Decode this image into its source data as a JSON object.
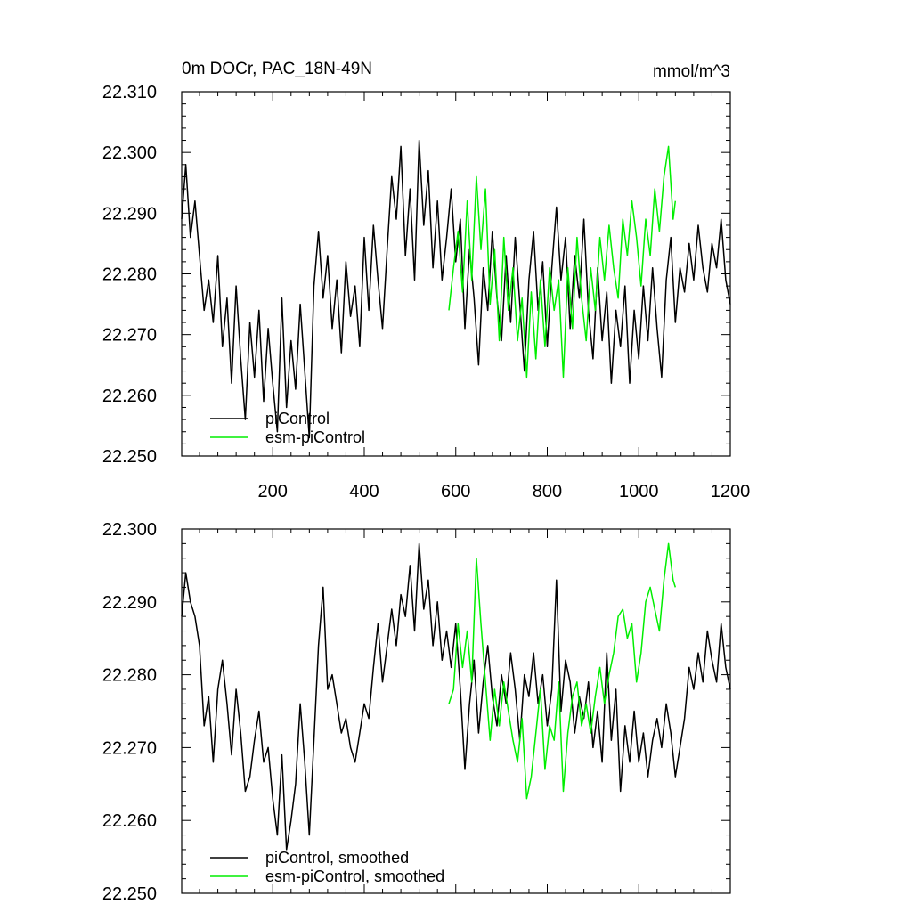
{
  "colors": {
    "piControl": "#000000",
    "esm_piControl": "#00ee00"
  },
  "chart_data": [
    {
      "type": "line",
      "title": "0m DOCr, PAC_18N-49N",
      "units": "mmol/m^3",
      "xlim": [
        1,
        1200
      ],
      "ylim": [
        22.25,
        22.31
      ],
      "x_ticks": [
        200,
        400,
        600,
        800,
        1000,
        1200
      ],
      "x_tick_labels": [
        "200",
        "400",
        "600",
        "800",
        "1000",
        "1200"
      ],
      "y_ticks": [
        22.25,
        22.26,
        22.27,
        22.28,
        22.29,
        22.3,
        22.31
      ],
      "y_tick_labels": [
        "22.250",
        "22.260",
        "22.270",
        "22.280",
        "22.290",
        "22.300",
        "22.310"
      ],
      "legend": [
        "piControl",
        "esm-piControl"
      ],
      "series": [
        {
          "name": "piControl",
          "color": "#000000",
          "x": [
            1,
            10,
            20,
            30,
            40,
            50,
            60,
            70,
            80,
            90,
            100,
            110,
            120,
            130,
            140,
            150,
            160,
            170,
            180,
            190,
            200,
            210,
            220,
            230,
            240,
            250,
            260,
            270,
            280,
            290,
            300,
            310,
            320,
            330,
            340,
            350,
            360,
            370,
            380,
            390,
            400,
            410,
            420,
            430,
            440,
            450,
            460,
            470,
            480,
            490,
            500,
            510,
            520,
            530,
            540,
            550,
            560,
            570,
            580,
            590,
            600,
            610,
            620,
            630,
            640,
            650,
            660,
            670,
            680,
            690,
            700,
            710,
            720,
            730,
            740,
            750,
            760,
            770,
            780,
            790,
            800,
            810,
            820,
            830,
            840,
            850,
            860,
            870,
            880,
            890,
            900,
            910,
            920,
            930,
            940,
            950,
            960,
            970,
            980,
            990,
            1000,
            1010,
            1020,
            1030,
            1040,
            1050,
            1060,
            1070,
            1080,
            1090,
            1100,
            1110,
            1120,
            1130,
            1140,
            1150,
            1160,
            1170,
            1180,
            1190,
            1200
          ],
          "values": [
            22.289,
            22.298,
            22.286,
            22.292,
            22.283,
            22.274,
            22.279,
            22.272,
            22.283,
            22.268,
            22.276,
            22.262,
            22.278,
            22.266,
            22.256,
            22.272,
            22.263,
            22.274,
            22.259,
            22.271,
            22.262,
            22.254,
            22.276,
            22.258,
            22.269,
            22.261,
            22.275,
            22.264,
            22.253,
            22.278,
            22.287,
            22.276,
            22.283,
            22.271,
            22.279,
            22.267,
            22.282,
            22.273,
            22.278,
            22.268,
            22.286,
            22.274,
            22.288,
            22.279,
            22.271,
            22.284,
            22.296,
            22.289,
            22.301,
            22.283,
            22.294,
            22.279,
            22.302,
            22.288,
            22.297,
            22.281,
            22.292,
            22.279,
            22.286,
            22.294,
            22.282,
            22.289,
            22.271,
            22.284,
            22.276,
            22.265,
            22.281,
            22.274,
            22.287,
            22.276,
            22.269,
            22.283,
            22.272,
            22.286,
            22.275,
            22.264,
            22.279,
            22.287,
            22.274,
            22.282,
            22.268,
            22.281,
            22.291,
            22.279,
            22.286,
            22.271,
            22.283,
            22.276,
            22.289,
            22.274,
            22.266,
            22.281,
            22.269,
            22.277,
            22.262,
            22.274,
            22.268,
            22.278,
            22.262,
            22.274,
            22.266,
            22.278,
            22.269,
            22.281,
            22.271,
            22.263,
            22.279,
            22.286,
            22.272,
            22.281,
            22.277,
            22.285,
            22.279,
            22.288,
            22.281,
            22.277,
            22.285,
            22.281,
            22.289,
            22.279,
            22.275
          ]
        },
        {
          "name": "esm-piControl",
          "color": "#00ee00",
          "x": [
            585,
            595,
            605,
            615,
            625,
            635,
            645,
            655,
            665,
            675,
            685,
            695,
            705,
            715,
            725,
            735,
            745,
            755,
            765,
            775,
            785,
            795,
            805,
            815,
            825,
            835,
            845,
            855,
            865,
            875,
            885,
            895,
            905,
            915,
            925,
            935,
            945,
            955,
            965,
            975,
            985,
            995,
            1005,
            1015,
            1025,
            1035,
            1045,
            1055,
            1065,
            1075,
            1080
          ],
          "values": [
            22.274,
            22.281,
            22.287,
            22.277,
            22.292,
            22.279,
            22.296,
            22.284,
            22.294,
            22.275,
            22.284,
            22.269,
            22.286,
            22.274,
            22.281,
            22.269,
            22.276,
            22.263,
            22.277,
            22.266,
            22.279,
            22.268,
            22.281,
            22.274,
            22.279,
            22.263,
            22.281,
            22.271,
            22.286,
            22.276,
            22.269,
            22.281,
            22.274,
            22.286,
            22.279,
            22.288,
            22.281,
            22.276,
            22.289,
            22.283,
            22.292,
            22.286,
            22.278,
            22.289,
            22.283,
            22.294,
            22.287,
            22.296,
            22.301,
            22.289,
            22.292
          ]
        }
      ]
    },
    {
      "type": "line",
      "title": "",
      "xlim": [
        1,
        1200
      ],
      "ylim": [
        22.25,
        22.3
      ],
      "x_ticks": [
        200,
        400,
        600,
        800,
        1000,
        1200
      ],
      "x_tick_labels": [],
      "y_ticks": [
        22.25,
        22.26,
        22.27,
        22.28,
        22.29,
        22.3
      ],
      "y_tick_labels": [
        "22.250",
        "22.260",
        "22.270",
        "22.280",
        "22.290",
        "22.300"
      ],
      "legend": [
        "piControl, smoothed",
        "esm-piControl, smoothed"
      ],
      "series": [
        {
          "name": "piControl, smoothed",
          "color": "#000000",
          "x": [
            1,
            10,
            20,
            30,
            40,
            50,
            60,
            70,
            80,
            90,
            100,
            110,
            120,
            130,
            140,
            150,
            160,
            170,
            180,
            190,
            200,
            210,
            220,
            230,
            240,
            250,
            260,
            270,
            280,
            290,
            300,
            310,
            320,
            330,
            340,
            350,
            360,
            370,
            380,
            390,
            400,
            410,
            420,
            430,
            440,
            450,
            460,
            470,
            480,
            490,
            500,
            510,
            520,
            530,
            540,
            550,
            560,
            570,
            580,
            590,
            600,
            610,
            620,
            630,
            640,
            650,
            660,
            670,
            680,
            690,
            700,
            710,
            720,
            730,
            740,
            750,
            760,
            770,
            780,
            790,
            800,
            810,
            820,
            830,
            840,
            850,
            860,
            870,
            880,
            890,
            900,
            910,
            920,
            930,
            940,
            950,
            960,
            970,
            980,
            990,
            1000,
            1010,
            1020,
            1030,
            1040,
            1050,
            1060,
            1070,
            1080,
            1090,
            1100,
            1110,
            1120,
            1130,
            1140,
            1150,
            1160,
            1170,
            1180,
            1190,
            1200
          ],
          "values": [
            22.288,
            22.294,
            22.29,
            22.288,
            22.284,
            22.273,
            22.277,
            22.268,
            22.278,
            22.282,
            22.276,
            22.269,
            22.278,
            22.272,
            22.264,
            22.266,
            22.271,
            22.275,
            22.268,
            22.27,
            22.263,
            22.258,
            22.269,
            22.256,
            22.26,
            22.265,
            22.276,
            22.268,
            22.258,
            22.271,
            22.284,
            22.292,
            22.278,
            22.28,
            22.276,
            22.272,
            22.274,
            22.27,
            22.268,
            22.272,
            22.276,
            22.274,
            22.281,
            22.287,
            22.279,
            22.284,
            22.289,
            22.284,
            22.291,
            22.288,
            22.295,
            22.286,
            22.298,
            22.289,
            22.293,
            22.284,
            22.29,
            22.282,
            22.286,
            22.281,
            22.287,
            22.278,
            22.267,
            22.276,
            22.282,
            22.272,
            22.279,
            22.284,
            22.277,
            22.273,
            22.28,
            22.276,
            22.283,
            22.278,
            22.271,
            22.28,
            22.277,
            22.283,
            22.276,
            22.28,
            22.273,
            22.278,
            22.293,
            22.275,
            22.282,
            22.279,
            22.272,
            22.277,
            22.274,
            22.279,
            22.27,
            22.275,
            22.268,
            22.283,
            22.271,
            22.278,
            22.264,
            22.273,
            22.268,
            22.275,
            22.268,
            22.272,
            22.266,
            22.271,
            22.274,
            22.27,
            22.276,
            22.272,
            22.266,
            22.27,
            22.274,
            22.281,
            22.278,
            22.283,
            22.279,
            22.286,
            22.282,
            22.279,
            22.287,
            22.281,
            22.278
          ]
        },
        {
          "name": "esm-piControl, smoothed",
          "color": "#00ee00",
          "x": [
            585,
            595,
            605,
            615,
            625,
            635,
            645,
            655,
            665,
            675,
            685,
            695,
            705,
            715,
            725,
            735,
            745,
            755,
            765,
            775,
            785,
            795,
            805,
            815,
            825,
            835,
            845,
            855,
            865,
            875,
            885,
            895,
            905,
            915,
            925,
            935,
            945,
            955,
            965,
            975,
            985,
            995,
            1005,
            1015,
            1025,
            1035,
            1045,
            1055,
            1065,
            1075,
            1080
          ],
          "values": [
            22.276,
            22.278,
            22.287,
            22.281,
            22.286,
            22.279,
            22.296,
            22.287,
            22.279,
            22.271,
            22.278,
            22.273,
            22.279,
            22.275,
            22.271,
            22.268,
            22.274,
            22.263,
            22.266,
            22.272,
            22.278,
            22.267,
            22.273,
            22.271,
            22.279,
            22.264,
            22.272,
            22.277,
            22.279,
            22.273,
            22.276,
            22.272,
            22.277,
            22.281,
            22.276,
            22.28,
            22.283,
            22.288,
            22.289,
            22.285,
            22.287,
            22.279,
            22.283,
            22.29,
            22.292,
            22.289,
            22.286,
            22.293,
            22.298,
            22.293,
            22.292
          ]
        }
      ]
    }
  ]
}
